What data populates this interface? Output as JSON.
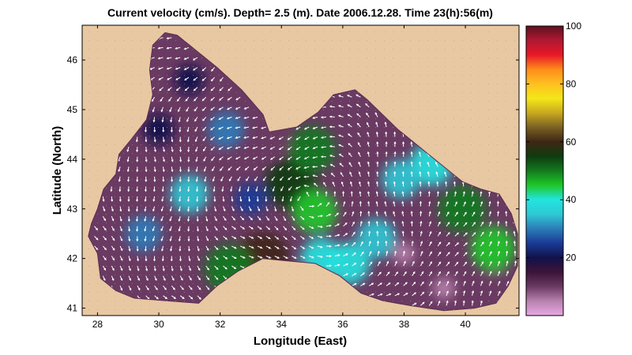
{
  "chart_data": {
    "type": "heatmap",
    "title": "Current velocity (cm/s). Depth=  2.5 (m). Date 2006.12.28. Time 23(h):56(m)",
    "xlabel": "Longitude (East)",
    "ylabel": "Latitude (North)",
    "xlim": [
      27.5,
      41.75
    ],
    "ylim": [
      40.85,
      46.7
    ],
    "x_ticks": [
      "28",
      "30",
      "32",
      "34",
      "36",
      "38",
      "40"
    ],
    "y_ticks": [
      "41",
      "42",
      "43",
      "44",
      "45",
      "46"
    ],
    "grid": "dotted",
    "colorbar": {
      "range": [
        0,
        100
      ],
      "ticks": [
        "20",
        "40",
        "60",
        "80",
        "100"
      ],
      "colors": [
        "#e8a8e4",
        "#b882ae",
        "#6a3a62",
        "#3c1438",
        "#12124a",
        "#1a3a96",
        "#2c7cb8",
        "#2ec8d4",
        "#22e4e0",
        "#1ec828",
        "#137a1e",
        "#0e3c10",
        "#3e2614",
        "#7a6024",
        "#c8a820",
        "#f4e618",
        "#ffc020",
        "#ff8c1a",
        "#e81828",
        "#b01830",
        "#5e1022"
      ]
    },
    "land_color": "#e8c8a2",
    "basin_outline": [
      [
        27.7,
        42.45
      ],
      [
        28.0,
        42.1
      ],
      [
        28.1,
        41.6
      ],
      [
        28.6,
        41.35
      ],
      [
        29.2,
        41.2
      ],
      [
        30.2,
        41.15
      ],
      [
        31.3,
        41.1
      ],
      [
        31.9,
        41.45
      ],
      [
        32.6,
        41.75
      ],
      [
        33.4,
        42.0
      ],
      [
        34.2,
        41.95
      ],
      [
        35.1,
        41.9
      ],
      [
        35.9,
        41.65
      ],
      [
        36.6,
        41.3
      ],
      [
        37.3,
        41.15
      ],
      [
        38.2,
        41.05
      ],
      [
        39.3,
        40.95
      ],
      [
        40.3,
        41.0
      ],
      [
        41.0,
        41.1
      ],
      [
        41.4,
        41.45
      ],
      [
        41.7,
        41.85
      ],
      [
        41.7,
        42.5
      ],
      [
        41.5,
        42.9
      ],
      [
        41.1,
        43.3
      ],
      [
        40.5,
        43.4
      ],
      [
        39.9,
        43.55
      ],
      [
        39.5,
        43.75
      ],
      [
        38.8,
        44.1
      ],
      [
        38.3,
        44.35
      ],
      [
        37.8,
        44.6
      ],
      [
        37.3,
        44.9
      ],
      [
        36.8,
        45.2
      ],
      [
        36.4,
        45.4
      ],
      [
        35.7,
        45.3
      ],
      [
        35.2,
        44.95
      ],
      [
        34.5,
        44.65
      ],
      [
        33.6,
        44.55
      ],
      [
        33.4,
        44.9
      ],
      [
        32.7,
        45.4
      ],
      [
        31.9,
        45.85
      ],
      [
        31.1,
        46.25
      ],
      [
        30.6,
        46.5
      ],
      [
        30.2,
        46.55
      ],
      [
        29.8,
        46.3
      ],
      [
        29.7,
        45.8
      ],
      [
        29.8,
        45.3
      ],
      [
        29.6,
        44.8
      ],
      [
        29.1,
        44.4
      ],
      [
        28.7,
        44.1
      ],
      [
        28.6,
        43.7
      ],
      [
        28.2,
        43.4
      ],
      [
        28.0,
        43.0
      ],
      [
        27.8,
        42.7
      ]
    ],
    "velocity_features": [
      {
        "lon": 34.3,
        "lat": 43.5,
        "speed": 55
      },
      {
        "lon": 35.0,
        "lat": 44.2,
        "speed": 48
      },
      {
        "lon": 35.1,
        "lat": 42.95,
        "speed": 44
      },
      {
        "lon": 33.4,
        "lat": 42.0,
        "speed": 58
      },
      {
        "lon": 32.3,
        "lat": 41.8,
        "speed": 52
      },
      {
        "lon": 39.9,
        "lat": 43.0,
        "speed": 50
      },
      {
        "lon": 40.9,
        "lat": 42.2,
        "speed": 45
      },
      {
        "lon": 38.9,
        "lat": 43.9,
        "speed": 42
      },
      {
        "lon": 36.2,
        "lat": 41.9,
        "speed": 40
      },
      {
        "lon": 37.1,
        "lat": 42.4,
        "speed": 36
      },
      {
        "lon": 31.0,
        "lat": 43.3,
        "speed": 34
      },
      {
        "lon": 29.5,
        "lat": 42.5,
        "speed": 30
      },
      {
        "lon": 32.2,
        "lat": 44.6,
        "speed": 30
      },
      {
        "lon": 37.9,
        "lat": 43.6,
        "speed": 34
      },
      {
        "lon": 30.0,
        "lat": 44.6,
        "speed": 20
      },
      {
        "lon": 31.0,
        "lat": 45.6,
        "speed": 18
      },
      {
        "lon": 35.3,
        "lat": 42.0,
        "speed": 38
      },
      {
        "lon": 33.0,
        "lat": 43.2,
        "speed": 24
      },
      {
        "lon": 31.8,
        "lat": 44.0,
        "speed": 8
      },
      {
        "lon": 29.8,
        "lat": 41.7,
        "speed": 10
      },
      {
        "lon": 39.3,
        "lat": 41.4,
        "speed": 6
      },
      {
        "lon": 38.0,
        "lat": 42.1,
        "speed": 5
      },
      {
        "lon": 41.0,
        "lat": 41.5,
        "speed": 10
      },
      {
        "lon": 33.8,
        "lat": 44.3,
        "speed": 12
      }
    ],
    "base_speed": 12
  }
}
